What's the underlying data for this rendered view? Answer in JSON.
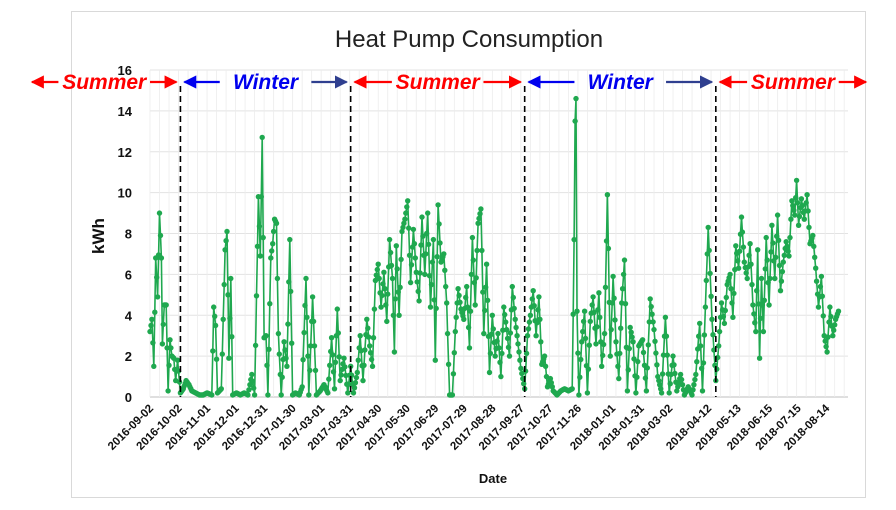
{
  "chart_data": {
    "type": "line",
    "title": "Heat Pump Consumption",
    "xlabel": "Date",
    "ylabel": "kWh",
    "ylim": [
      0,
      16
    ],
    "yticks": [
      0,
      2,
      4,
      6,
      8,
      10,
      12,
      14,
      16
    ],
    "xlim": [
      "2016-09-02",
      "2018-09-06"
    ],
    "xticks": [
      "2016-09-02",
      "2016-10-02",
      "2016-11-01",
      "2016-12-01",
      "2016-12-31",
      "2017-01-30",
      "2017-03-01",
      "2017-03-31",
      "2017-04-30",
      "2017-05-30",
      "2017-06-29",
      "2017-07-29",
      "2017-08-28",
      "2017-09-27",
      "2017-10-27",
      "2017-11-26",
      "2018-01-01",
      "2018-01-31",
      "2018-03-02",
      "2018-04-12",
      "2018-05-13",
      "2018-06-15",
      "2018-07-15",
      "2018-08-14"
    ],
    "grid": true,
    "legend": "none",
    "series_color": "#1fa84f",
    "marker": "circle",
    "season_boundaries": [
      "2016-10-04",
      "2017-04-01",
      "2017-10-01",
      "2018-04-20"
    ],
    "season_labels": [
      {
        "text": "Summer",
        "color": "#ff0000"
      },
      {
        "text": "Winter",
        "color": "#0000ee"
      },
      {
        "text": "Summer",
        "color": "#ff0000"
      },
      {
        "text": "Winter",
        "color": "#0000ee"
      },
      {
        "text": "Summer",
        "color": "#ff0000"
      }
    ],
    "anchors": [
      [
        "2016-09-02",
        3.2
      ],
      [
        "2016-09-04",
        3.8
      ],
      [
        "2016-09-06",
        1.5
      ],
      [
        "2016-09-08",
        6.8
      ],
      [
        "2016-09-10",
        4.9
      ],
      [
        "2016-09-12",
        9.0
      ],
      [
        "2016-09-14",
        6.8
      ],
      [
        "2016-09-15",
        2.6
      ],
      [
        "2016-09-17",
        4.5
      ],
      [
        "2016-09-19",
        4.5
      ],
      [
        "2016-09-21",
        0.3
      ],
      [
        "2016-09-23",
        2.8
      ],
      [
        "2016-09-25",
        2.0
      ],
      [
        "2016-09-27",
        1.9
      ],
      [
        "2016-09-29",
        0.8
      ],
      [
        "2016-10-01",
        1.8
      ],
      [
        "2016-10-04",
        0.2
      ],
      [
        "2016-10-07",
        0.4
      ],
      [
        "2016-10-10",
        0.8
      ],
      [
        "2016-10-13",
        0.6
      ],
      [
        "2016-10-16",
        0.3
      ],
      [
        "2016-10-20",
        0.2
      ],
      [
        "2016-10-24",
        0.1
      ],
      [
        "2016-10-28",
        0.1
      ],
      [
        "2016-11-01",
        0.2
      ],
      [
        "2016-11-06",
        0.1
      ],
      [
        "2016-11-08",
        4.4
      ],
      [
        "2016-11-10",
        3.5
      ],
      [
        "2016-11-12",
        0.2
      ],
      [
        "2016-11-16",
        0.4
      ],
      [
        "2016-11-20",
        7.2
      ],
      [
        "2016-11-22",
        8.1
      ],
      [
        "2016-11-24",
        1.9
      ],
      [
        "2016-11-26",
        5.8
      ],
      [
        "2016-11-28",
        0.1
      ],
      [
        "2016-12-02",
        0.2
      ],
      [
        "2016-12-06",
        0.1
      ],
      [
        "2016-12-10",
        0.2
      ],
      [
        "2016-12-14",
        0.1
      ],
      [
        "2016-12-18",
        1.1
      ],
      [
        "2016-12-21",
        0.1
      ],
      [
        "2016-12-25",
        9.8
      ],
      [
        "2016-12-27",
        6.9
      ],
      [
        "2016-12-29",
        12.7
      ],
      [
        "2016-12-31",
        2.9
      ],
      [
        "2017-01-02",
        3.0
      ],
      [
        "2017-01-04",
        0.1
      ],
      [
        "2017-01-07",
        6.8
      ],
      [
        "2017-01-09",
        7.5
      ],
      [
        "2017-01-11",
        8.7
      ],
      [
        "2017-01-13",
        8.5
      ],
      [
        "2017-01-15",
        3.1
      ],
      [
        "2017-01-18",
        0.1
      ],
      [
        "2017-01-21",
        2.7
      ],
      [
        "2017-01-24",
        1.5
      ],
      [
        "2017-01-27",
        7.7
      ],
      [
        "2017-01-30",
        0.1
      ],
      [
        "2017-02-02",
        0.2
      ],
      [
        "2017-02-06",
        0.1
      ],
      [
        "2017-02-09",
        0.5
      ],
      [
        "2017-02-13",
        5.8
      ],
      [
        "2017-02-16",
        0.1
      ],
      [
        "2017-02-20",
        4.9
      ],
      [
        "2017-02-24",
        0.1
      ],
      [
        "2017-02-28",
        0.3
      ],
      [
        "2017-03-04",
        0.6
      ],
      [
        "2017-03-08",
        0.2
      ],
      [
        "2017-03-12",
        2.9
      ],
      [
        "2017-03-15",
        0.4
      ],
      [
        "2017-03-18",
        4.3
      ],
      [
        "2017-03-21",
        0.8
      ],
      [
        "2017-03-25",
        1.9
      ],
      [
        "2017-03-29",
        0.2
      ],
      [
        "2017-04-01",
        1.5
      ],
      [
        "2017-04-04",
        0.2
      ],
      [
        "2017-04-08",
        1.2
      ],
      [
        "2017-04-11",
        3.0
      ],
      [
        "2017-04-14",
        0.8
      ],
      [
        "2017-04-18",
        3.8
      ],
      [
        "2017-04-21",
        2.5
      ],
      [
        "2017-04-24",
        1.5
      ],
      [
        "2017-04-27",
        5.7
      ],
      [
        "2017-04-30",
        6.5
      ],
      [
        "2017-05-03",
        4.4
      ],
      [
        "2017-05-06",
        6.1
      ],
      [
        "2017-05-09",
        3.7
      ],
      [
        "2017-05-12",
        7.7
      ],
      [
        "2017-05-15",
        5.8
      ],
      [
        "2017-05-17",
        2.2
      ],
      [
        "2017-05-19",
        7.4
      ],
      [
        "2017-05-22",
        4.0
      ],
      [
        "2017-05-25",
        8.1
      ],
      [
        "2017-05-28",
        8.7
      ],
      [
        "2017-05-31",
        9.6
      ],
      [
        "2017-06-03",
        5.6
      ],
      [
        "2017-06-06",
        8.2
      ],
      [
        "2017-06-09",
        6.1
      ],
      [
        "2017-06-12",
        4.7
      ],
      [
        "2017-06-15",
        8.8
      ],
      [
        "2017-06-18",
        6.0
      ],
      [
        "2017-06-21",
        9.0
      ],
      [
        "2017-06-24",
        4.4
      ],
      [
        "2017-06-27",
        7.7
      ],
      [
        "2017-06-29",
        1.8
      ],
      [
        "2017-07-02",
        9.4
      ],
      [
        "2017-07-05",
        6.6
      ],
      [
        "2017-07-08",
        7.0
      ],
      [
        "2017-07-11",
        4.6
      ],
      [
        "2017-07-14",
        0.1
      ],
      [
        "2017-07-17",
        0.1
      ],
      [
        "2017-07-20",
        3.2
      ],
      [
        "2017-07-23",
        5.3
      ],
      [
        "2017-07-26",
        4.3
      ],
      [
        "2017-07-29",
        3.8
      ],
      [
        "2017-08-01",
        5.4
      ],
      [
        "2017-08-04",
        2.4
      ],
      [
        "2017-08-07",
        7.8
      ],
      [
        "2017-08-10",
        4.5
      ],
      [
        "2017-08-13",
        8.5
      ],
      [
        "2017-08-16",
        9.2
      ],
      [
        "2017-08-19",
        3.1
      ],
      [
        "2017-08-22",
        6.5
      ],
      [
        "2017-08-25",
        1.2
      ],
      [
        "2017-08-28",
        4.0
      ],
      [
        "2017-08-31",
        2.0
      ],
      [
        "2017-09-03",
        3.1
      ],
      [
        "2017-09-06",
        1.0
      ],
      [
        "2017-09-09",
        4.4
      ],
      [
        "2017-09-12",
        3.3
      ],
      [
        "2017-09-15",
        2.0
      ],
      [
        "2017-09-18",
        5.4
      ],
      [
        "2017-09-21",
        3.8
      ],
      [
        "2017-09-24",
        2.6
      ],
      [
        "2017-09-27",
        1.4
      ],
      [
        "2017-10-01",
        0.4
      ],
      [
        "2017-10-04",
        3.0
      ],
      [
        "2017-10-07",
        4.0
      ],
      [
        "2017-10-10",
        5.2
      ],
      [
        "2017-10-13",
        3.0
      ],
      [
        "2017-10-16",
        4.9
      ],
      [
        "2017-10-19",
        1.6
      ],
      [
        "2017-10-22",
        2.0
      ],
      [
        "2017-10-25",
        0.5
      ],
      [
        "2017-10-28",
        0.9
      ],
      [
        "2017-10-31",
        0.3
      ],
      [
        "2017-11-04",
        0.1
      ],
      [
        "2017-11-08",
        0.3
      ],
      [
        "2017-11-12",
        0.4
      ],
      [
        "2017-11-16",
        0.3
      ],
      [
        "2017-11-20",
        0.4
      ],
      [
        "2017-11-22",
        7.7
      ],
      [
        "2017-11-23",
        13.5
      ],
      [
        "2017-11-24",
        14.6
      ],
      [
        "2017-11-25",
        4.2
      ],
      [
        "2017-11-27",
        0.1
      ],
      [
        "2017-11-30",
        2.7
      ],
      [
        "2017-12-03",
        4.2
      ],
      [
        "2017-12-06",
        0.2
      ],
      [
        "2017-12-09",
        3.7
      ],
      [
        "2017-12-12",
        4.9
      ],
      [
        "2017-12-15",
        2.6
      ],
      [
        "2017-12-18",
        5.1
      ],
      [
        "2017-12-21",
        1.5
      ],
      [
        "2017-12-24",
        3.1
      ],
      [
        "2017-12-27",
        9.9
      ],
      [
        "2017-12-30",
        2.0
      ],
      [
        "2018-01-02",
        5.9
      ],
      [
        "2018-01-05",
        2.7
      ],
      [
        "2018-01-08",
        0.9
      ],
      [
        "2018-01-11",
        4.6
      ],
      [
        "2018-01-14",
        6.7
      ],
      [
        "2018-01-17",
        0.3
      ],
      [
        "2018-01-20",
        3.4
      ],
      [
        "2018-01-23",
        2.7
      ],
      [
        "2018-01-26",
        0.2
      ],
      [
        "2018-01-29",
        2.5
      ],
      [
        "2018-02-02",
        2.8
      ],
      [
        "2018-02-06",
        0.3
      ],
      [
        "2018-02-10",
        4.8
      ],
      [
        "2018-02-14",
        3.3
      ],
      [
        "2018-02-18",
        1.0
      ],
      [
        "2018-02-22",
        0.2
      ],
      [
        "2018-02-26",
        3.9
      ],
      [
        "2018-03-02",
        0.2
      ],
      [
        "2018-03-06",
        2.0
      ],
      [
        "2018-03-10",
        0.3
      ],
      [
        "2018-03-14",
        1.1
      ],
      [
        "2018-03-18",
        0.1
      ],
      [
        "2018-03-22",
        0.5
      ],
      [
        "2018-03-26",
        0.1
      ],
      [
        "2018-03-30",
        1.1
      ],
      [
        "2018-04-03",
        3.6
      ],
      [
        "2018-04-06",
        0.3
      ],
      [
        "2018-04-09",
        4.4
      ],
      [
        "2018-04-12",
        8.3
      ],
      [
        "2018-04-16",
        3.8
      ],
      [
        "2018-04-20",
        0.8
      ],
      [
        "2018-04-23",
        2.5
      ],
      [
        "2018-04-26",
        4.6
      ],
      [
        "2018-04-29",
        3.6
      ],
      [
        "2018-05-02",
        5.5
      ],
      [
        "2018-05-05",
        6.0
      ],
      [
        "2018-05-08",
        3.9
      ],
      [
        "2018-05-11",
        7.4
      ],
      [
        "2018-05-14",
        6.3
      ],
      [
        "2018-05-17",
        8.8
      ],
      [
        "2018-05-20",
        6.6
      ],
      [
        "2018-05-23",
        5.8
      ],
      [
        "2018-05-26",
        7.5
      ],
      [
        "2018-05-29",
        4.5
      ],
      [
        "2018-06-01",
        3.2
      ],
      [
        "2018-06-03",
        7.2
      ],
      [
        "2018-06-05",
        1.9
      ],
      [
        "2018-06-07",
        5.8
      ],
      [
        "2018-06-09",
        3.2
      ],
      [
        "2018-06-12",
        7.8
      ],
      [
        "2018-06-15",
        4.5
      ],
      [
        "2018-06-18",
        8.4
      ],
      [
        "2018-06-21",
        5.8
      ],
      [
        "2018-06-24",
        8.9
      ],
      [
        "2018-06-27",
        5.2
      ],
      [
        "2018-06-30",
        6.6
      ],
      [
        "2018-07-03",
        7.6
      ],
      [
        "2018-07-06",
        6.9
      ],
      [
        "2018-07-09",
        9.6
      ],
      [
        "2018-07-12",
        8.9
      ],
      [
        "2018-07-14",
        10.6
      ],
      [
        "2018-07-16",
        8.4
      ],
      [
        "2018-07-19",
        9.7
      ],
      [
        "2018-07-22",
        8.7
      ],
      [
        "2018-07-25",
        9.9
      ],
      [
        "2018-07-28",
        7.5
      ],
      [
        "2018-07-31",
        7.9
      ],
      [
        "2018-08-03",
        6.3
      ],
      [
        "2018-08-06",
        4.4
      ],
      [
        "2018-08-09",
        5.9
      ],
      [
        "2018-08-12",
        3.0
      ],
      [
        "2018-08-15",
        2.2
      ],
      [
        "2018-08-18",
        4.4
      ],
      [
        "2018-08-21",
        3.0
      ],
      [
        "2018-08-24",
        3.8
      ],
      [
        "2018-08-27",
        4.2
      ]
    ]
  }
}
